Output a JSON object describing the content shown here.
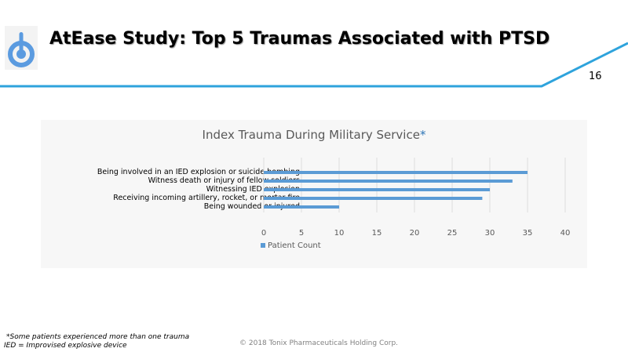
{
  "header": {
    "title": "AtEase Study: Top 5 Traumas Associated with PTSD",
    "page_number": "16",
    "accent_color": "#2ea3dc",
    "logo_icon": "power-icon"
  },
  "chart_data": {
    "type": "bar",
    "orientation": "horizontal",
    "title": "Index Trauma During Military Service",
    "title_marker": "*",
    "categories": [
      "Being involved in an IED explosion or suicide bombing",
      "Witness death or injury of fellow soldiers",
      "Witnessing IED explosion",
      "Receiving incoming artillery, rocket, or mortar fire",
      "Being wounded or injured"
    ],
    "series": [
      {
        "name": "Patient Count",
        "values": [
          35,
          33,
          30,
          29,
          10
        ],
        "color": "#5b9bd5"
      }
    ],
    "xlim": [
      0,
      40
    ],
    "x_ticks": [
      "0",
      "5",
      "10",
      "15",
      "20",
      "25",
      "30",
      "35",
      "40"
    ],
    "grid": true,
    "legend": "bottom-left"
  },
  "footer": {
    "footnote_1": "*Some patients experienced more than one trauma",
    "footnote_2": "IED = Improvised explosive device",
    "copyright": "© 2018 Tonix Pharmaceuticals Holding Corp."
  }
}
